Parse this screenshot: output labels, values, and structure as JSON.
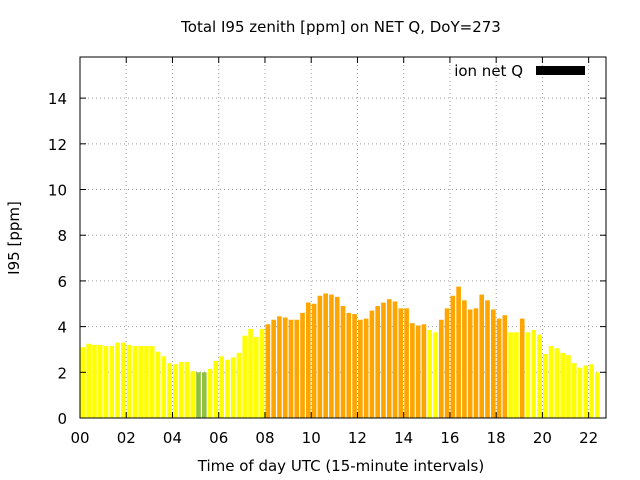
{
  "chart_data": {
    "type": "bar",
    "title": "Total I95 zenith [ppm] on NET Q, DoY=273",
    "xlabel": "Time of day UTC (15-minute intervals)",
    "ylabel": "I95 [ppm]",
    "xlim": [
      0,
      22.75
    ],
    "ylim": [
      0,
      15.8
    ],
    "x_ticks": [
      {
        "value": 0,
        "label": "00"
      },
      {
        "value": 2,
        "label": "02"
      },
      {
        "value": 4,
        "label": "04"
      },
      {
        "value": 6,
        "label": "06"
      },
      {
        "value": 8,
        "label": "08"
      },
      {
        "value": 10,
        "label": "10"
      },
      {
        "value": 12,
        "label": "12"
      },
      {
        "value": 14,
        "label": "14"
      },
      {
        "value": 16,
        "label": "16"
      },
      {
        "value": 18,
        "label": "18"
      },
      {
        "value": 20,
        "label": "20"
      },
      {
        "value": 22,
        "label": "22"
      }
    ],
    "y_ticks": [
      {
        "value": 0,
        "label": "0"
      },
      {
        "value": 2,
        "label": "2"
      },
      {
        "value": 4,
        "label": "4"
      },
      {
        "value": 6,
        "label": "6"
      },
      {
        "value": 8,
        "label": "8"
      },
      {
        "value": 10,
        "label": "10"
      },
      {
        "value": 12,
        "label": "12"
      },
      {
        "value": 14,
        "label": "14"
      }
    ],
    "grid": true,
    "bar_interval_hours": 0.25,
    "legend": {
      "position": "top-right",
      "label": "ion net Q",
      "color": "#000000"
    },
    "values": [
      3.1,
      3.25,
      3.2,
      3.2,
      3.15,
      3.15,
      3.3,
      3.3,
      3.2,
      3.15,
      3.15,
      3.15,
      3.15,
      2.9,
      2.7,
      2.4,
      2.35,
      2.45,
      2.45,
      2.05,
      2.0,
      2.0,
      2.15,
      2.5,
      2.7,
      2.55,
      2.65,
      2.85,
      3.6,
      3.9,
      3.55,
      3.9,
      4.1,
      4.3,
      4.45,
      4.4,
      4.3,
      4.3,
      4.6,
      5.05,
      5.0,
      5.35,
      5.45,
      5.4,
      5.3,
      4.9,
      4.6,
      4.55,
      4.3,
      4.35,
      4.7,
      4.9,
      5.05,
      5.2,
      5.1,
      4.8,
      4.8,
      4.15,
      4.05,
      4.1,
      3.85,
      3.75,
      4.3,
      4.8,
      5.35,
      5.75,
      5.15,
      4.75,
      4.8,
      5.4,
      5.15,
      4.75,
      4.35,
      4.5,
      3.75,
      3.75,
      4.35,
      3.75,
      3.85,
      3.65,
      2.8,
      3.15,
      3.05,
      2.85,
      2.75,
      2.4,
      2.2,
      2.3,
      2.35,
      2.0
    ],
    "colors": [
      "#ffff00",
      "#ffff00",
      "#ffff00",
      "#ffff00",
      "#ffff00",
      "#ffff00",
      "#ffff00",
      "#ffff00",
      "#ffff00",
      "#ffff00",
      "#ffff00",
      "#ffff00",
      "#ffff00",
      "#ffff00",
      "#ffff00",
      "#ffff00",
      "#ffff00",
      "#ffff00",
      "#ffff00",
      "#ffff00",
      "#90c040",
      "#90c040",
      "#ffff00",
      "#ffff00",
      "#ffff00",
      "#ffff00",
      "#ffff00",
      "#ffff00",
      "#ffff00",
      "#ffff00",
      "#ffff00",
      "#ffff00",
      "#ffa500",
      "#ffa500",
      "#ffa500",
      "#ffa500",
      "#ffa500",
      "#ffa500",
      "#ffa500",
      "#ffa500",
      "#ffa500",
      "#ffa500",
      "#ffa500",
      "#ffa500",
      "#ffa500",
      "#ffa500",
      "#ffa500",
      "#ffa500",
      "#ffa500",
      "#ffa500",
      "#ffa500",
      "#ffa500",
      "#ffa500",
      "#ffa500",
      "#ffa500",
      "#ffa500",
      "#ffa500",
      "#ffa500",
      "#ffa500",
      "#ffa500",
      "#ffff00",
      "#ffff00",
      "#ffa500",
      "#ffa500",
      "#ffa500",
      "#ffa500",
      "#ffa500",
      "#ffa500",
      "#ffa500",
      "#ffa500",
      "#ffa500",
      "#ffa500",
      "#ffa500",
      "#ffa500",
      "#ffff00",
      "#ffff00",
      "#ffa500",
      "#ffff00",
      "#ffff00",
      "#ffff00",
      "#ffff00",
      "#ffff00",
      "#ffff00",
      "#ffff00",
      "#ffff00",
      "#ffff00",
      "#ffff00",
      "#ffff00",
      "#ffff00",
      "#ffff00"
    ]
  }
}
